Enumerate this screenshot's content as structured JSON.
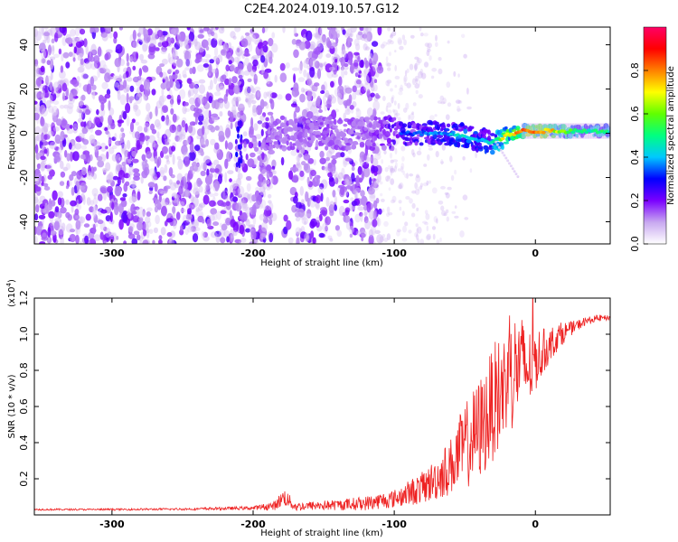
{
  "title": "C2E4.2024.019.10.57.G12",
  "chart_data": [
    {
      "type": "heatmap",
      "xlabel": "Height of straight line (km)",
      "ylabel": "Frequency (Hz)",
      "xlim": [
        -355,
        53
      ],
      "ylim": [
        -50,
        48
      ],
      "xticks": [
        -300,
        -200,
        -100,
        0
      ],
      "xtick_labels": [
        "-300",
        "-200",
        "-100",
        "0"
      ],
      "yticks": [
        40,
        20,
        0,
        -20,
        -40
      ],
      "ytick_labels": [
        "40",
        "20",
        "0",
        "-20",
        "-40"
      ],
      "colorbar": {
        "label": "Normalized spectral amplitude",
        "range": [
          0,
          1
        ],
        "ticks": [
          0.0,
          0.2,
          0.4,
          0.6,
          0.8
        ],
        "tick_labels": [
          "0.0",
          "0.2",
          "0.4",
          "0.6",
          "0.8"
        ],
        "colormap": [
          "#ffffff",
          "#c8a8f0",
          "#7a00ff",
          "#0000ff",
          "#00c8ff",
          "#00ff80",
          "#60ff00",
          "#ffff00",
          "#ff8000",
          "#ff0000",
          "#ff0066"
        ]
      },
      "signal_trace": {
        "x": [
          -120,
          -100,
          -80,
          -60,
          -50,
          -40,
          -30,
          -20,
          -10,
          0,
          10,
          20,
          30,
          40,
          50
        ],
        "frequency": [
          0,
          0,
          0,
          0,
          -1,
          -3,
          -4,
          -1,
          1,
          1,
          1,
          1,
          1,
          1,
          1
        ],
        "amplitude": [
          0.2,
          0.3,
          0.35,
          0.4,
          0.45,
          0.4,
          0.45,
          0.75,
          0.8,
          0.85,
          0.75,
          0.6,
          0.55,
          0.5,
          0.5
        ]
      },
      "grid": false
    },
    {
      "type": "line",
      "xlabel": "Height of straight line (km)",
      "ylabel": "SNR (10 * v/v)",
      "scale_label": "(x10",
      "scale_exponent": "4",
      "scale_suffix": ")",
      "xlim": [
        -355,
        53
      ],
      "ylim": [
        0,
        12000
      ],
      "xticks": [
        -300,
        -200,
        -100,
        0
      ],
      "xtick_labels": [
        "-300",
        "-200",
        "-100",
        "0"
      ],
      "yticks": [
        2000,
        4000,
        6000,
        8000,
        10000,
        12000
      ],
      "ytick_labels": [
        "0.2",
        "0.4",
        "0.6",
        "0.8",
        "1.0",
        "1.2"
      ],
      "series": [
        {
          "color": "#ee2222",
          "x": [
            -355,
            -300,
            -250,
            -200,
            -185,
            -178,
            -170,
            -160,
            -140,
            -120,
            -100,
            -90,
            -80,
            -70,
            -60,
            -55,
            -50,
            -45,
            -40,
            -35,
            -30,
            -25,
            -20,
            -15,
            -10,
            -5,
            0,
            5,
            10,
            15,
            20,
            25,
            30,
            35,
            40,
            45,
            50
          ],
          "y": [
            300,
            300,
            320,
            380,
            500,
            1000,
            450,
            500,
            550,
            650,
            900,
            1200,
            1500,
            2000,
            2700,
            3300,
            3800,
            4200,
            4700,
            5300,
            6200,
            6700,
            7500,
            8000,
            8500,
            8000,
            8600,
            9000,
            9400,
            9800,
            10100,
            10300,
            10500,
            10700,
            10800,
            10900,
            10900
          ],
          "noise": [
            50,
            50,
            60,
            100,
            250,
            500,
            250,
            250,
            300,
            400,
            500,
            700,
            900,
            1200,
            1600,
            2000,
            2400,
            2600,
            2900,
            3000,
            3200,
            3300,
            3000,
            3300,
            2600,
            2300,
            1800,
            1300,
            1000,
            800,
            600,
            400,
            300,
            250,
            200,
            180,
            150
          ]
        }
      ],
      "grid": false
    }
  ]
}
